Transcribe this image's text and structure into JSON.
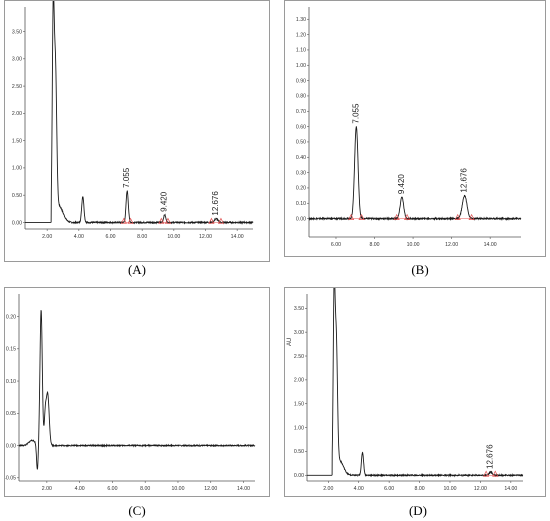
{
  "figure": {
    "captions": [
      "(A)",
      "(B)",
      "(C)",
      "(D)"
    ]
  },
  "colors": {
    "trace": "#1a1a1a",
    "marker": "#e05050",
    "axis": "#555555"
  },
  "chart_data": [
    {
      "panel": "A",
      "type": "line",
      "xlim": [
        0.6,
        15.0
      ],
      "ylim": [
        -0.12,
        3.95
      ],
      "xticks": [
        "2.00",
        "4.00",
        "6.00",
        "8.00",
        "10.00",
        "12.00",
        "14.00"
      ],
      "xtick_values": [
        2,
        4,
        6,
        8,
        10,
        12,
        14
      ],
      "yticks": [
        "0.00",
        "0.50",
        "1.00",
        "1.50",
        "2.00",
        "2.50",
        "3.00",
        "3.50"
      ],
      "ytick_values": [
        0,
        0.5,
        1.0,
        1.5,
        2.0,
        2.5,
        3.0,
        3.5
      ],
      "peaks": [
        {
          "x": 2.38,
          "y": 3.45,
          "w": 0.06
        },
        {
          "x": 2.52,
          "y": 2.7,
          "w": 0.08
        },
        {
          "x": 2.75,
          "y": 0.3,
          "w": 0.25
        },
        {
          "x": 4.25,
          "y": 0.48,
          "w": 0.07
        },
        {
          "x": 7.055,
          "y": 0.58,
          "w": 0.07
        },
        {
          "x": 9.42,
          "y": 0.14,
          "w": 0.07
        },
        {
          "x": 12.676,
          "y": 0.07,
          "w": 0.1
        }
      ],
      "baseline_start": 2.25,
      "peak_labels": [
        "7.055",
        "9.420",
        "12.676"
      ],
      "peak_label_x": [
        7.055,
        9.42,
        12.676
      ]
    },
    {
      "panel": "B",
      "type": "line",
      "xlim": [
        4.6,
        15.6
      ],
      "ylim": [
        -0.12,
        1.38
      ],
      "xticks": [
        "6.00",
        "8.00",
        "10.00",
        "12.00",
        "14.00"
      ],
      "xtick_values": [
        6,
        8,
        10,
        12,
        14
      ],
      "yticks": [
        "0.00",
        "0.10",
        "0.20",
        "0.30",
        "0.40",
        "0.50",
        "0.60",
        "0.70",
        "0.80",
        "0.90",
        "1.00",
        "1.10",
        "1.20",
        "1.30"
      ],
      "ytick_values": [
        0,
        0.1,
        0.2,
        0.3,
        0.4,
        0.5,
        0.6,
        0.7,
        0.8,
        0.9,
        1.0,
        1.1,
        1.2,
        1.3
      ],
      "peaks": [
        {
          "x": 7.055,
          "y": 0.6,
          "w": 0.09
        },
        {
          "x": 9.42,
          "y": 0.14,
          "w": 0.09
        },
        {
          "x": 12.676,
          "y": 0.15,
          "w": 0.12
        }
      ],
      "baseline_start": 4.6,
      "peak_labels": [
        "7.055",
        "9.420",
        "12.676"
      ],
      "peak_label_x": [
        7.055,
        9.42,
        12.676
      ]
    },
    {
      "panel": "C",
      "type": "line",
      "xlim": [
        0.3,
        14.7
      ],
      "ylim": [
        -0.055,
        0.235
      ],
      "xticks": [
        "2.00",
        "4.00",
        "6.00",
        "8.00",
        "10.00",
        "12.00",
        "14.00"
      ],
      "xtick_values": [
        2,
        4,
        6,
        8,
        10,
        12,
        14
      ],
      "yticks": [
        "-0.05",
        "0.00",
        "0.05",
        "0.10",
        "0.15",
        "0.20"
      ],
      "ytick_values": [
        -0.05,
        0.0,
        0.05,
        0.1,
        0.15,
        0.2
      ],
      "peaks": [
        {
          "x": 1.1,
          "y": 0.008,
          "w": 0.2
        },
        {
          "x": 1.42,
          "y": -0.04,
          "w": 0.05
        },
        {
          "x": 1.65,
          "y": 0.21,
          "w": 0.07
        },
        {
          "x": 2.05,
          "y": 0.08,
          "w": 0.09
        },
        {
          "x": 1.9,
          "y": 0.04,
          "w": 0.06
        }
      ],
      "baseline_start": 0.3,
      "peak_labels": [],
      "peak_label_x": []
    },
    {
      "panel": "D",
      "type": "line",
      "y_unit_label": "AU",
      "xlim": [
        0.6,
        14.8
      ],
      "ylim": [
        -0.12,
        3.8
      ],
      "xticks": [
        "2.00",
        "4.00",
        "6.00",
        "8.00",
        "10.00",
        "12.00",
        "14.00"
      ],
      "xtick_values": [
        2,
        4,
        6,
        8,
        10,
        12,
        14
      ],
      "yticks": [
        "0.00",
        "0.50",
        "1.00",
        "1.50",
        "2.00",
        "2.50",
        "3.00",
        "3.50"
      ],
      "ytick_values": [
        0,
        0.5,
        1.0,
        1.5,
        2.0,
        2.5,
        3.0,
        3.5
      ],
      "peaks": [
        {
          "x": 2.38,
          "y": 3.45,
          "w": 0.06
        },
        {
          "x": 2.52,
          "y": 2.7,
          "w": 0.08
        },
        {
          "x": 2.75,
          "y": 0.3,
          "w": 0.25
        },
        {
          "x": 4.25,
          "y": 0.48,
          "w": 0.07
        },
        {
          "x": 12.676,
          "y": 0.07,
          "w": 0.1
        }
      ],
      "baseline_start": 2.25,
      "peak_labels": [
        "12.676"
      ],
      "peak_label_x": [
        12.676
      ]
    }
  ]
}
